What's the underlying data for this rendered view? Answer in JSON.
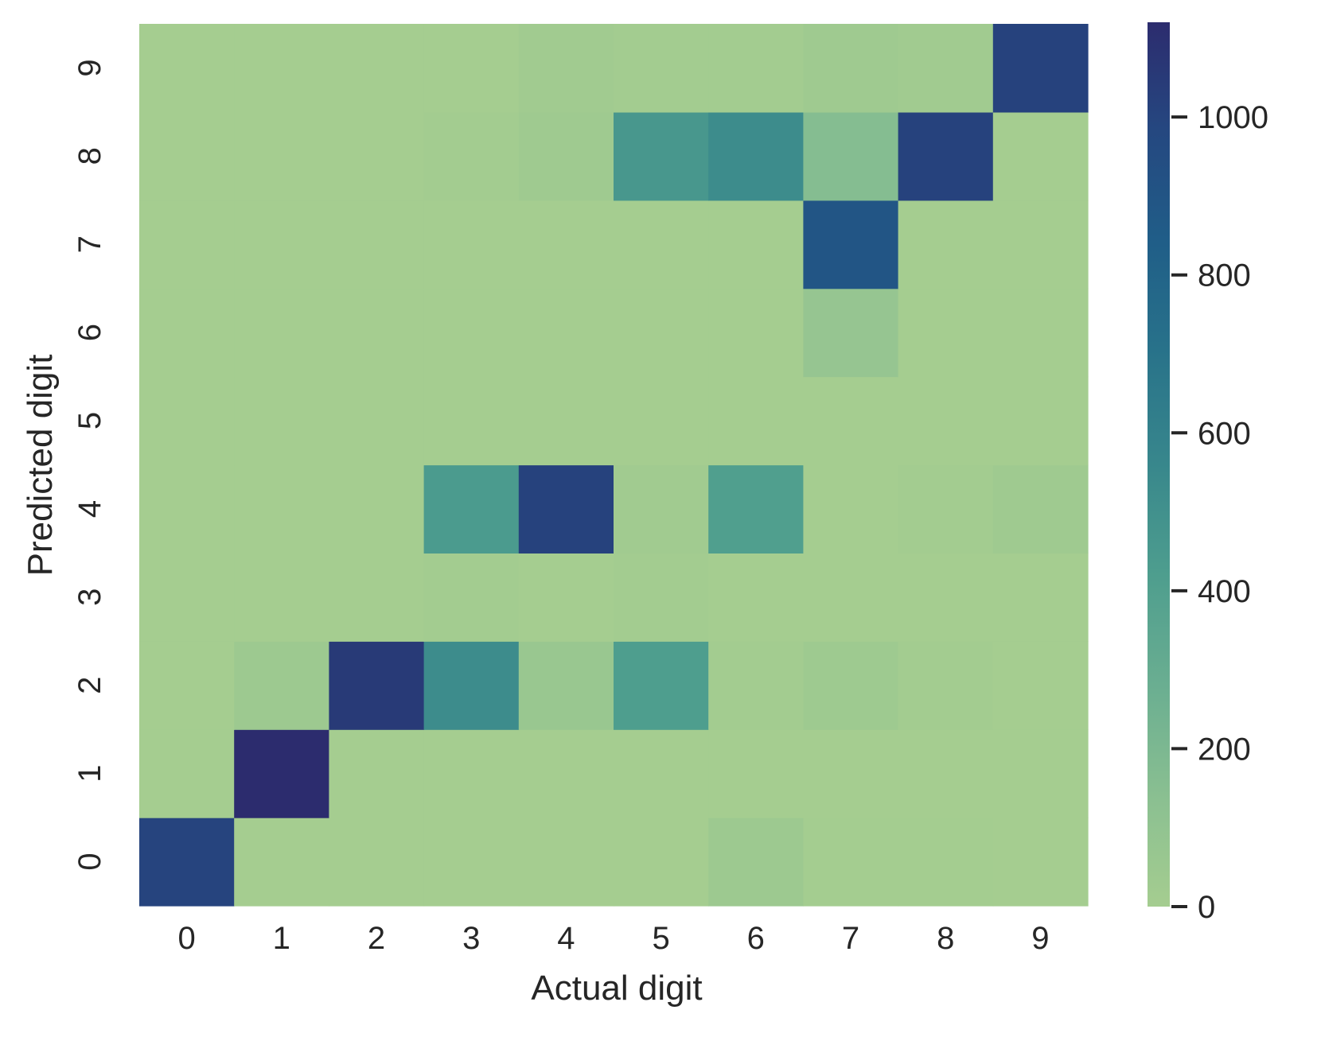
{
  "chart_data": {
    "type": "heatmap",
    "title": "",
    "xlabel": "Actual digit",
    "ylabel": "Predicted digit",
    "x_categories": [
      "0",
      "1",
      "2",
      "3",
      "4",
      "5",
      "6",
      "7",
      "8",
      "9"
    ],
    "y_categories": [
      "0",
      "1",
      "2",
      "3",
      "4",
      "5",
      "6",
      "7",
      "8",
      "9"
    ],
    "y_order": "bottom-to-top",
    "values_rows_by_predicted": [
      [
        1000,
        0,
        0,
        0,
        0,
        0,
        40,
        5,
        5,
        0
      ],
      [
        0,
        1120,
        0,
        0,
        0,
        0,
        0,
        0,
        0,
        0
      ],
      [
        0,
        40,
        1050,
        530,
        60,
        420,
        10,
        35,
        10,
        0
      ],
      [
        0,
        0,
        0,
        10,
        0,
        10,
        0,
        0,
        0,
        0
      ],
      [
        0,
        0,
        0,
        440,
        1010,
        20,
        410,
        0,
        10,
        30
      ],
      [
        0,
        0,
        0,
        0,
        0,
        0,
        0,
        0,
        0,
        0
      ],
      [
        0,
        0,
        0,
        0,
        0,
        0,
        0,
        80,
        0,
        0
      ],
      [
        0,
        0,
        0,
        0,
        0,
        0,
        0,
        900,
        0,
        0
      ],
      [
        0,
        0,
        0,
        10,
        30,
        460,
        530,
        160,
        1010,
        0
      ],
      [
        0,
        0,
        0,
        0,
        20,
        10,
        10,
        30,
        20,
        1010
      ]
    ],
    "colorbar": {
      "min": 0,
      "max": 1120,
      "ticks": [
        0,
        200,
        400,
        600,
        800,
        1000
      ],
      "tick_labels": [
        "0",
        "200",
        "400",
        "600",
        "800",
        "1000"
      ],
      "colormap": "crest"
    },
    "grid": false
  },
  "colors": {
    "text": "#262626",
    "background": "#ffffff"
  }
}
